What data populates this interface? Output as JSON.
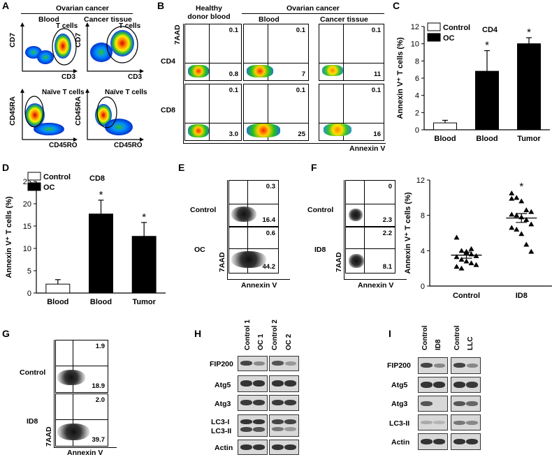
{
  "panels": {
    "A": {
      "label": "A",
      "header": "Ovarian cancer",
      "col_blood": "Blood",
      "col_tissue": "Cancer tissue",
      "top_ylabel": "CD7",
      "top_xlabel": "CD3",
      "top_gate": "T cells",
      "bottom_ylabel": "CD45RA",
      "bottom_xlabel": "CD45RO",
      "bottom_gate": "Naïve T cells"
    },
    "B": {
      "label": "B",
      "header_left": "Healthy donor blood",
      "header_right": "Ovarian cancer",
      "col_blood": "Blood",
      "col_tissue": "Cancer tissue",
      "row_cd4": "CD4",
      "row_cd8": "CD8",
      "ylabel": "7AAD",
      "xlabel": "Annexin V",
      "values": [
        [
          "0.1",
          "0.8",
          "0.1",
          "7",
          "0.1",
          "11"
        ],
        [
          "0.1",
          "3.0",
          "0.1",
          "25",
          "0.1",
          "16"
        ]
      ]
    },
    "C": {
      "label": "C",
      "title": "CD4",
      "legend_control": "Control",
      "legend_oc": "OC",
      "ylabel": "Annexin V⁺ T cells (%)"
    },
    "D": {
      "label": "D",
      "title": "CD8",
      "legend_control": "Control",
      "legend_oc": "OC",
      "ylabel": "Annexin V⁺ T cells (%)"
    },
    "E": {
      "label": "E",
      "row1": "Control",
      "row2": "OC",
      "ylabel": "7AAD",
      "xlabel": "Annexin V",
      "values": [
        "0.3",
        "16.4",
        "0.6",
        "44.2"
      ]
    },
    "F": {
      "label": "F",
      "row1": "Control",
      "row2": "ID8",
      "ylabel": "7AAD",
      "xlabel": "Annexin V",
      "values": [
        "0",
        "2.3",
        "2.2",
        "8.1"
      ],
      "scatter_ylabel": "Annexin V⁺ T cells (%)"
    },
    "G": {
      "label": "G",
      "row1": "Control",
      "row2": "ID8",
      "ylabel": "7AAD",
      "xlabel": "Annexin V",
      "values": [
        "1.9",
        "18.9",
        "2.0",
        "39.7"
      ]
    },
    "H": {
      "label": "H",
      "lanes": [
        "Control 1",
        "OC 1",
        "Control 2",
        "OC 2"
      ],
      "rows": [
        "FIP200",
        "Atg5",
        "Atg3",
        "LC3-I",
        "LC3-II",
        "Actin"
      ]
    },
    "I": {
      "label": "I",
      "lanes": [
        "Control",
        "ID8",
        "Control",
        "LLC"
      ],
      "rows": [
        "FIP200",
        "Atg5",
        "Atg3",
        "LC3-II",
        "Actin"
      ]
    }
  },
  "chart_data": [
    {
      "panel": "C",
      "type": "bar",
      "title": "CD4",
      "categories": [
        "Blood",
        "Blood",
        "Tumor"
      ],
      "group": [
        "Control",
        "OC",
        "OC"
      ],
      "values": [
        0.8,
        6.8,
        10.0
      ],
      "errors": [
        0.3,
        2.4,
        0.7
      ],
      "significant": [
        false,
        true,
        true
      ],
      "ylabel": "Annexin V⁺ T cells (%)",
      "ylim": [
        0,
        12
      ],
      "yticks": [
        0,
        2,
        4,
        6,
        8,
        10,
        12
      ],
      "legend": [
        "Control",
        "OC"
      ],
      "colors": {
        "Control": "#ffffff",
        "OC": "#000000"
      }
    },
    {
      "panel": "D",
      "type": "bar",
      "title": "CD8",
      "categories": [
        "Blood",
        "Blood",
        "Tumor"
      ],
      "group": [
        "Control",
        "OC",
        "OC"
      ],
      "values": [
        2.0,
        17.7,
        12.7
      ],
      "errors": [
        1.0,
        3.1,
        3.1
      ],
      "significant": [
        false,
        true,
        true
      ],
      "ylabel": "Annexin V⁺ T cells (%)",
      "ylim": [
        0,
        25
      ],
      "yticks": [
        0,
        5,
        10,
        15,
        20,
        25
      ],
      "legend": [
        "Control",
        "OC"
      ],
      "colors": {
        "Control": "#ffffff",
        "OC": "#000000"
      }
    },
    {
      "panel": "F",
      "type": "scatter",
      "categories": [
        "Control",
        "ID8"
      ],
      "series": [
        {
          "values": [
            5.5,
            4.0,
            3.8,
            3.6,
            3.4,
            3.3,
            3.0,
            2.8,
            2.6,
            2.4,
            2.2,
            2.0,
            3.9,
            4.2
          ],
          "mean": 3.5,
          "sem": 0.35
        },
        {
          "values": [
            10.5,
            10.0,
            9.6,
            8.6,
            8.4,
            8.1,
            8.0,
            7.8,
            7.5,
            7.0,
            6.6,
            6.4,
            5.9,
            4.7,
            3.9,
            9.9
          ],
          "mean": 7.7,
          "sem": 0.5
        }
      ],
      "significant": [
        false,
        true
      ],
      "ylabel": "Annexin V⁺ T cells (%)",
      "ylim": [
        0,
        12
      ],
      "yticks": [
        0,
        4,
        8,
        12
      ]
    }
  ]
}
